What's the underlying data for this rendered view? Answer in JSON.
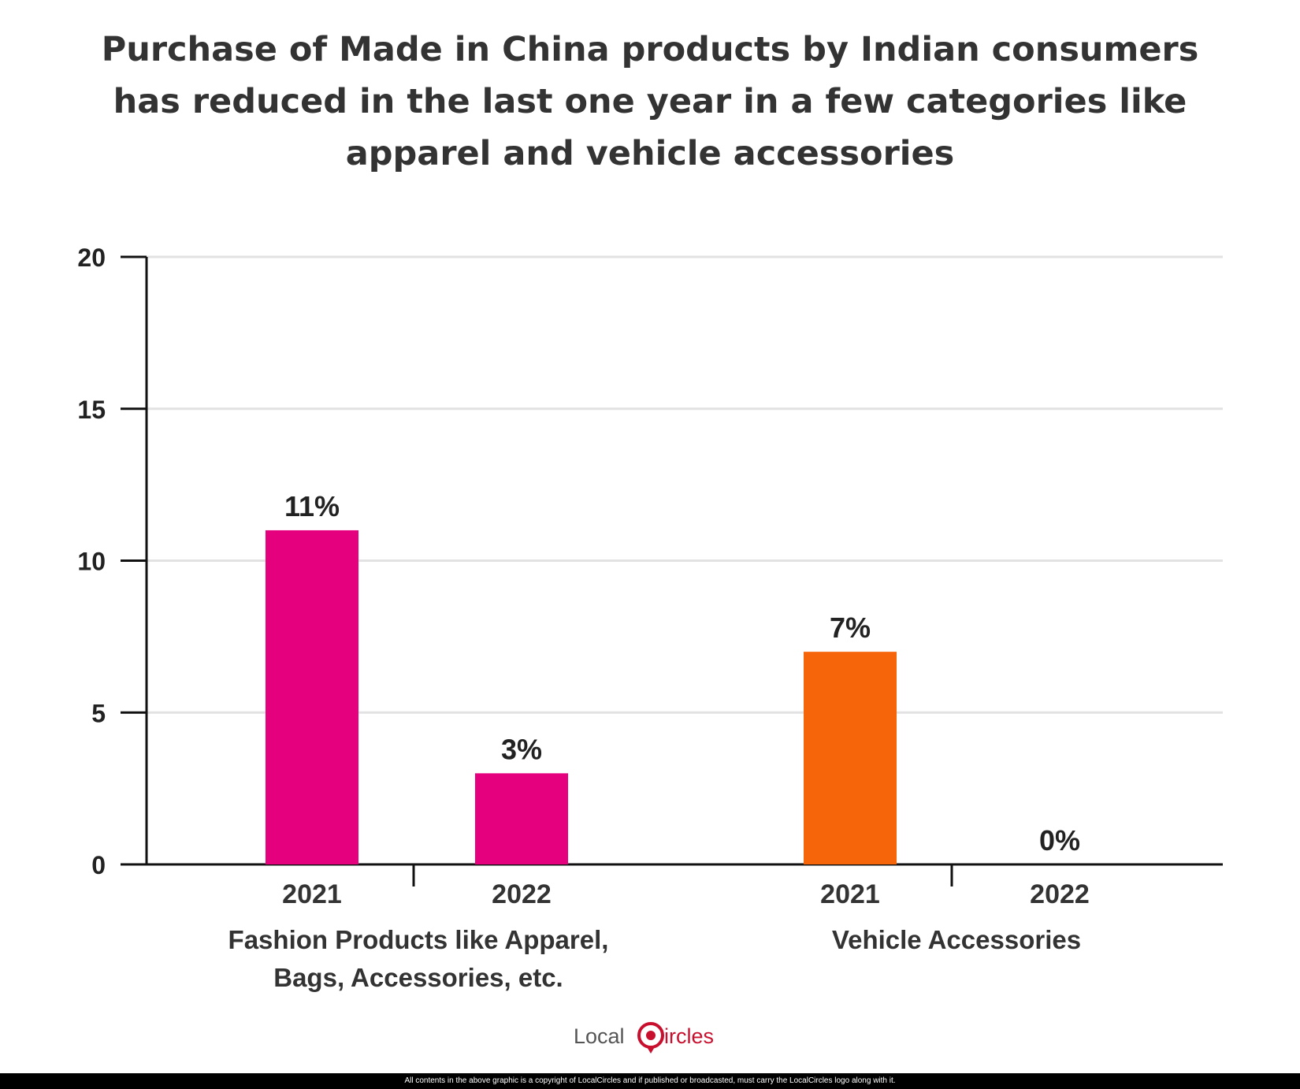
{
  "title_lines": [
    "Purchase of Made in China products by Indian consumers",
    "has reduced in the last one year in a few categories like",
    "apparel and vehicle accessories"
  ],
  "chart_data": {
    "type": "bar",
    "ylim": [
      0,
      20
    ],
    "yticks": [
      0,
      5,
      10,
      15,
      20
    ],
    "grid": true,
    "groups": [
      {
        "label_lines": [
          "Fashion Products like Apparel,",
          "Bags, Accessories, etc."
        ],
        "color": "#e5007d",
        "bars": [
          {
            "year": "2021",
            "value": 11,
            "label": "11%"
          },
          {
            "year": "2022",
            "value": 3,
            "label": "3%"
          }
        ]
      },
      {
        "label_lines": [
          "Vehicle Accessories"
        ],
        "color": "#f6650a",
        "bars": [
          {
            "year": "2021",
            "value": 7,
            "label": "7%"
          },
          {
            "year": "2022",
            "value": 0,
            "label": "0%"
          }
        ]
      }
    ]
  },
  "logo": {
    "text_left": "Local",
    "text_c": "C",
    "text_right": "ircles",
    "accent": "#c8102e"
  },
  "footer": "All contents in the above graphic is a copyright of LocalCircles and if published or broadcasted, must carry the LocalCircles logo along with it."
}
